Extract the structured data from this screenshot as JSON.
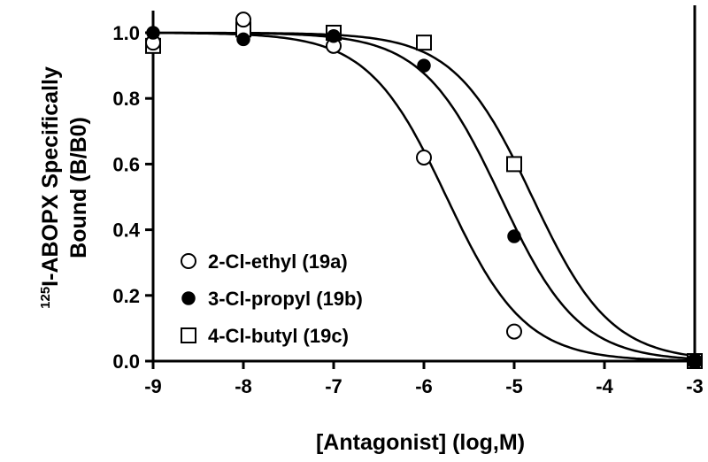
{
  "chart_data": {
    "type": "scatter",
    "title": "",
    "xlabel": "[Antagonist] (log,M)",
    "ylabel_sup": "125",
    "ylabel_line1": "I-ABOPX Specifically",
    "ylabel_line2": "Bound (B/B0)",
    "xlim": [
      -9,
      -3
    ],
    "ylim": [
      0,
      1.0
    ],
    "x_ticks": [
      -9,
      -8,
      -7,
      -6,
      -5,
      -4,
      -3
    ],
    "x_tick_labels": [
      "-9",
      "-8",
      "-7",
      "-6",
      "-5",
      "-4",
      "-3"
    ],
    "y_ticks": [
      0.0,
      0.2,
      0.4,
      0.6,
      0.8,
      1.0
    ],
    "y_tick_labels": [
      "0.0",
      "0.2",
      "0.4",
      "0.6",
      "0.8",
      "1.0"
    ],
    "grid": false,
    "legend_position": "bottom-left",
    "series": [
      {
        "name": "2-Cl-ethyl",
        "compound": "19a",
        "marker": "open-circle",
        "x": [
          -9,
          -8,
          -7,
          -6,
          -5,
          -3
        ],
        "y": [
          0.97,
          1.04,
          0.96,
          0.62,
          0.09,
          0.0
        ],
        "ic50_log": -5.75
      },
      {
        "name": "3-Cl-propyl",
        "compound": "19b",
        "marker": "filled-circle",
        "x": [
          -9,
          -8,
          -7,
          -6,
          -5,
          -3
        ],
        "y": [
          1.0,
          0.98,
          0.99,
          0.9,
          0.38,
          0.0
        ],
        "ic50_log": -5.15
      },
      {
        "name": "4-Cl-butyl",
        "compound": "19c",
        "marker": "open-square",
        "x": [
          -9,
          -8,
          -7,
          -6,
          -5,
          -3
        ],
        "y": [
          0.96,
          1.01,
          1.0,
          0.97,
          0.6,
          0.0
        ],
        "ic50_log": -4.8
      }
    ]
  }
}
